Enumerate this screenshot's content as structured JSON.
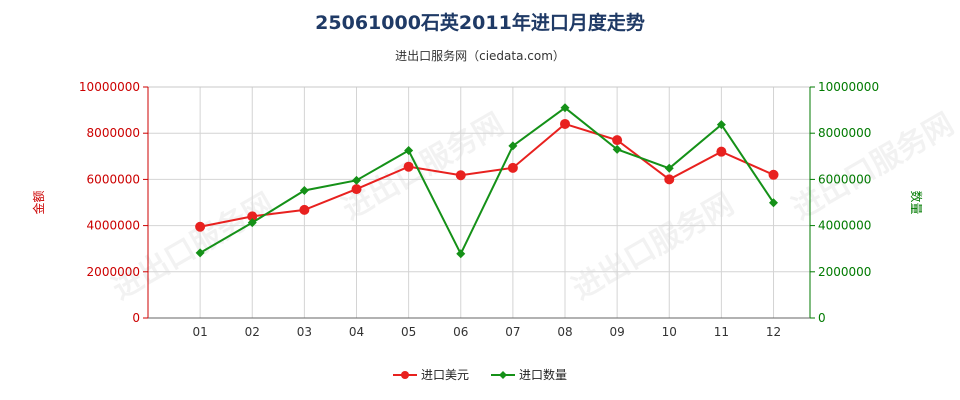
{
  "title": "25061000石英2011年进口月度走势",
  "subtitle": "进出口服务网（ciedata.com）",
  "watermark": "进出口服务网",
  "chart_data": {
    "type": "line",
    "categories": [
      "01",
      "02",
      "03",
      "04",
      "05",
      "06",
      "07",
      "08",
      "09",
      "10",
      "11",
      "12"
    ],
    "left_axis": {
      "label": "金额",
      "ticks": [
        "0",
        "2000000",
        "4000000",
        "6000000",
        "8000000",
        "10000000"
      ],
      "ylim": [
        0,
        10000000
      ],
      "color": "#cc0000"
    },
    "right_axis": {
      "label": "数量",
      "ticks": [
        "0",
        "2000000",
        "4000000",
        "6000000",
        "8000000",
        "10000000"
      ],
      "ylim": [
        0,
        10000000
      ],
      "color": "#007a00"
    },
    "series": [
      {
        "name": "进口美元",
        "axis": "left",
        "color": "#e8211f",
        "values": [
          3950000,
          4400000,
          4680000,
          5580000,
          6550000,
          6180000,
          6500000,
          8400000,
          7700000,
          6000000,
          7200000,
          6200000
        ]
      },
      {
        "name": "进口数量",
        "axis": "right",
        "color": "#159118",
        "values": [
          2820000,
          4130000,
          5520000,
          5960000,
          7250000,
          2780000,
          7450000,
          9100000,
          7300000,
          6480000,
          8370000,
          4990000
        ]
      }
    ],
    "grid": true,
    "legend_position": "bottom"
  }
}
